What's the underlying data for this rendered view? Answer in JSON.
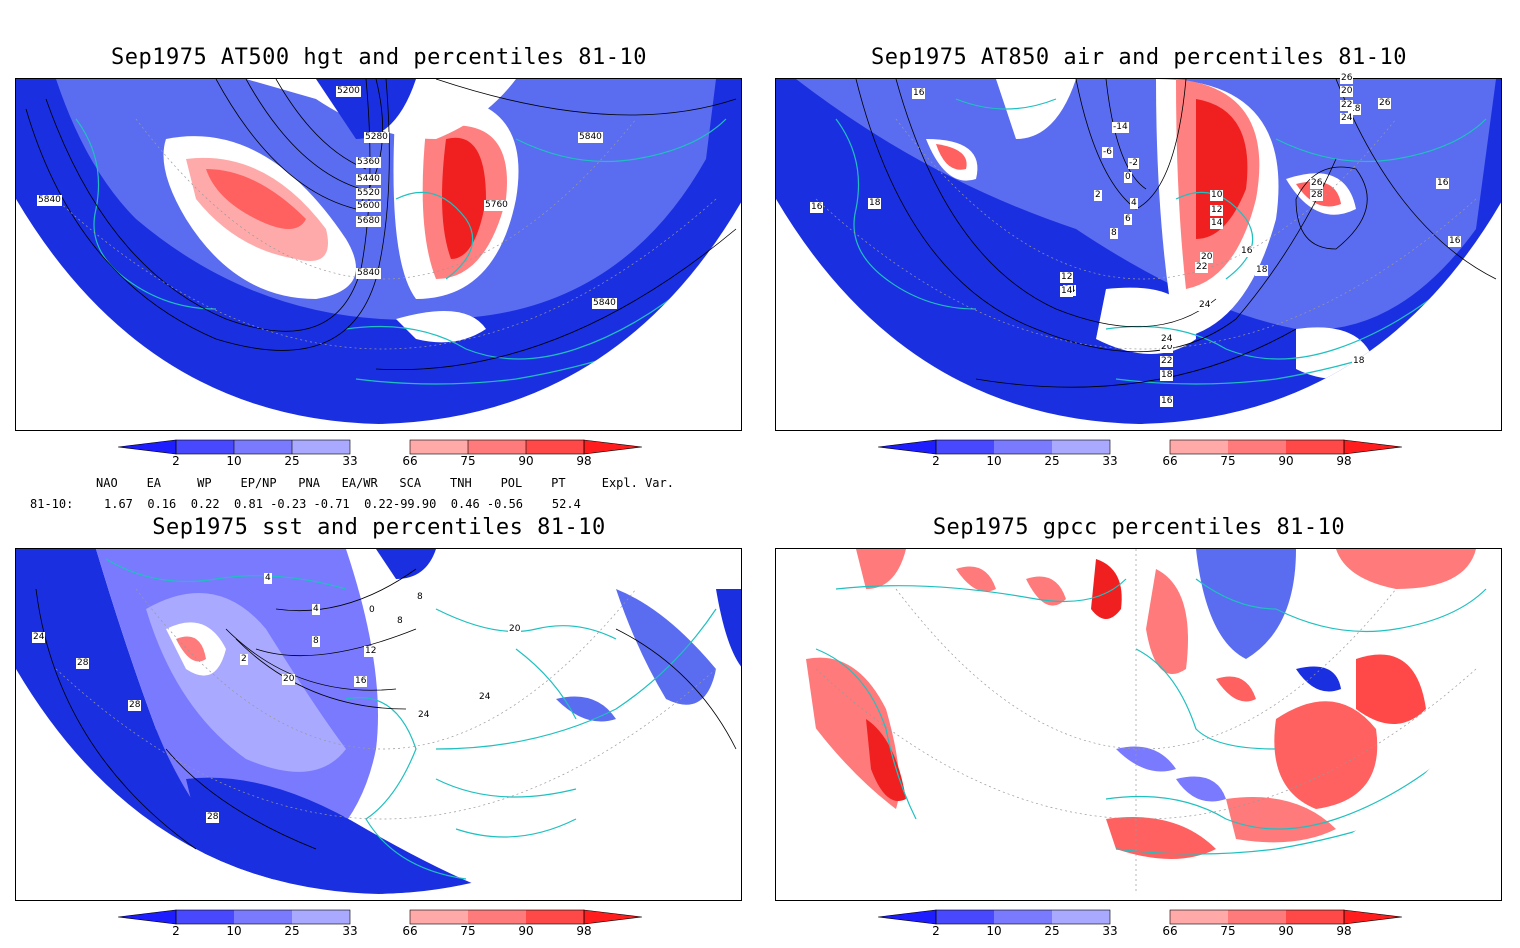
{
  "panels": [
    {
      "title": "Sep1975 AT500 hgt and percentiles 81-10",
      "contour_labels": [
        "5200",
        "5280",
        "5360",
        "5440",
        "5520",
        "5600",
        "5680",
        "5840",
        "5760",
        "5840",
        "5840",
        "5840"
      ]
    },
    {
      "title": "Sep1975 AT850 air and percentiles 81-10",
      "contour_labels": [
        "16",
        "14",
        "16",
        "18",
        "-14",
        "-6",
        "-2",
        "0",
        "2",
        "4",
        "6",
        "8",
        "10",
        "12",
        "14",
        "16",
        "18",
        "20",
        "22",
        "24",
        "26",
        "28",
        "26",
        "16",
        "18",
        "12",
        "14",
        "20",
        "22",
        "24",
        "18",
        "16",
        "18",
        "20",
        "22",
        "24",
        "26",
        "16"
      ]
    },
    {
      "title": "Sep1975 sst and percentiles 81-10",
      "contour_labels": [
        "24",
        "28",
        "28",
        "4",
        "8",
        "12",
        "16",
        "20",
        "24",
        "24",
        "20",
        "28",
        "8",
        "4",
        "2",
        "0",
        "8"
      ]
    },
    {
      "title": "Sep1975 gpcc percentiles 81-10",
      "contour_labels": []
    }
  ],
  "colorbar": {
    "labels": [
      "2",
      "10",
      "25",
      "33",
      "66",
      "75",
      "90",
      "98"
    ],
    "colors": [
      "#1d1dff",
      "#4848ff",
      "#7a7aff",
      "#a9a9ff",
      "#ffa9a9",
      "#ff7a7a",
      "#ff4848",
      "#ff1d1d"
    ]
  },
  "indices": {
    "header": "NAO    EA     WP    EP/NP   PNA   EA/WR   SCA    TNH    POL    PT     Expl. Var.",
    "row_label": "81-10:",
    "values": "1.67  0.16  0.22  0.81 -0.23 -0.71  0.22-99.90  0.46 -0.56    52.4"
  },
  "colors": {
    "land": "#20c0c0",
    "blue_strong": "#1a2fe0",
    "blue_mid": "#5a6cf0",
    "blue_light": "#aab0ff",
    "red_light": "#ffaaaa",
    "red_mid": "#ff6060",
    "red_strong": "#f02020"
  }
}
